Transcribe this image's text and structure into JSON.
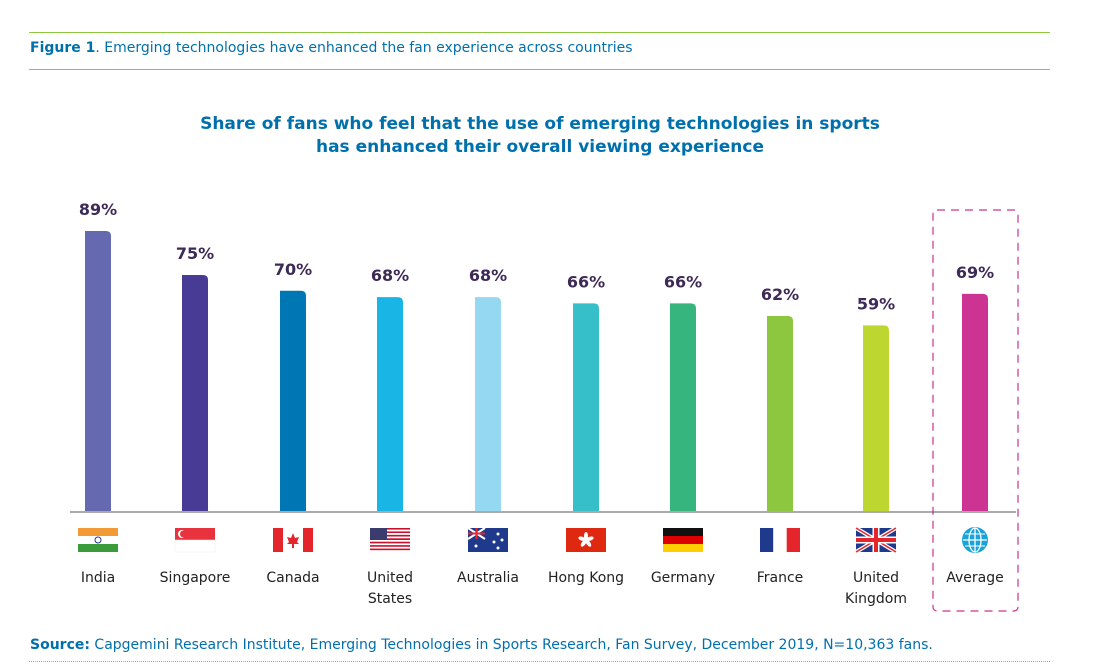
{
  "figure": {
    "label": "Figure 1",
    "caption": ". Emerging technologies have enhanced the fan experience across countries"
  },
  "chart_data": {
    "type": "bar",
    "title_line1": "Share of fans who feel that the use of emerging technologies in sports",
    "title_line2": "has enhanced their overall viewing experience",
    "categories": [
      "India",
      "Singapore",
      "Canada",
      "United States",
      "Australia",
      "Hong Kong",
      "Germany",
      "France",
      "United Kingdom",
      "Average"
    ],
    "category_lines": [
      [
        "India"
      ],
      [
        "Singapore"
      ],
      [
        "Canada"
      ],
      [
        "United",
        "States"
      ],
      [
        "Australia"
      ],
      [
        "Hong Kong"
      ],
      [
        "Germany"
      ],
      [
        "France"
      ],
      [
        "United",
        "Kingdom"
      ],
      [
        "Average"
      ]
    ],
    "values": [
      89,
      75,
      70,
      68,
      68,
      66,
      66,
      62,
      59,
      69
    ],
    "value_labels": [
      "89%",
      "75%",
      "70%",
      "68%",
      "68%",
      "66%",
      "66%",
      "62%",
      "59%",
      "69%"
    ],
    "colors": [
      "#6569b0",
      "#473b96",
      "#0077b5",
      "#19b5e4",
      "#94d9f1",
      "#36bfc9",
      "#36b57f",
      "#8dc63f",
      "#bed630",
      "#cc3393"
    ],
    "icons": [
      "india-flag-icon",
      "singapore-flag-icon",
      "canada-flag-icon",
      "united-states-flag-icon",
      "australia-flag-icon",
      "hong-kong-flag-icon",
      "germany-flag-icon",
      "france-flag-icon",
      "united-kingdom-flag-icon",
      "globe-icon"
    ],
    "highlighted": "Average",
    "ylim": [
      0,
      100
    ],
    "grid": false,
    "legend": "none"
  },
  "source": {
    "label": "Source:",
    "text": " Capgemini Research Institute, Emerging Technologies in Sports Research, Fan Survey, December 2019, N=10,363 fans."
  }
}
